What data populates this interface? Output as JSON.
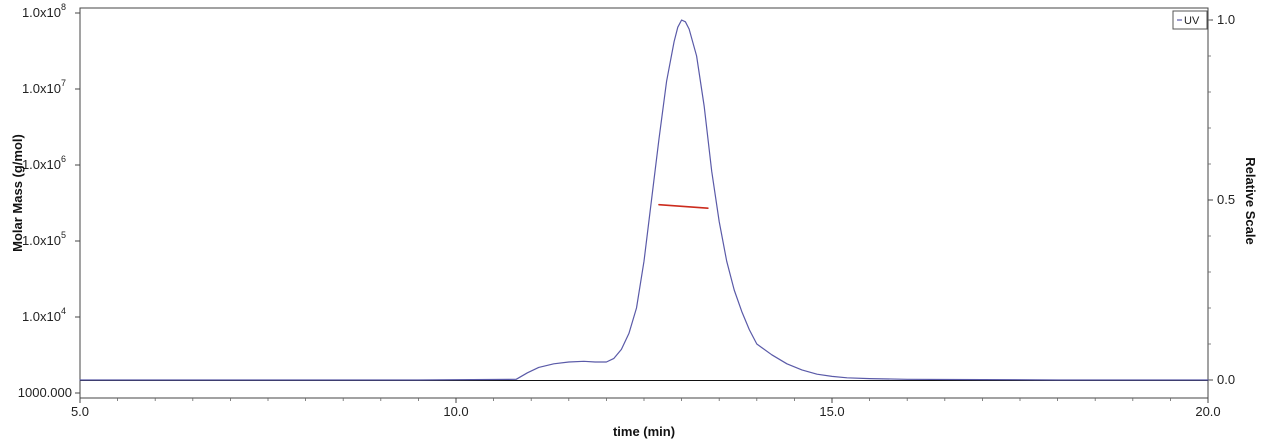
{
  "chart_data": {
    "type": "line",
    "xlabel": "time (min)",
    "ylabel_left": "Molar Mass (g/mol)",
    "ylabel_right": "Relative Scale",
    "xlim": [
      5.0,
      20.0
    ],
    "ylim_left": [
      1000,
      100000000
    ],
    "ylim_right": [
      -0.0,
      1.0
    ],
    "y_left_scale": "log",
    "x_ticks": [
      "5.0",
      "10.0",
      "15.0",
      "20.0"
    ],
    "x_tick_values": [
      5,
      10,
      15,
      20
    ],
    "y_left_ticks": [
      {
        "value": 1000,
        "mant": "1000.000",
        "exp": ""
      },
      {
        "value": 10000,
        "mant": "1.0x10",
        "exp": "4"
      },
      {
        "value": 100000,
        "mant": "1.0x10",
        "exp": "5"
      },
      {
        "value": 1000000,
        "mant": "1.0x10",
        "exp": "6"
      },
      {
        "value": 10000000,
        "mant": "1.0x10",
        "exp": "7"
      },
      {
        "value": 100000000,
        "mant": "1.0x10",
        "exp": "8"
      }
    ],
    "y_right_ticks": [
      {
        "value": 0.0,
        "label": "0.0"
      },
      {
        "value": 0.5,
        "label": "0.5"
      },
      {
        "value": 1.0,
        "label": "1.0"
      }
    ],
    "legend": {
      "entries": [
        "UV"
      ],
      "placement": "top-right"
    },
    "grid": false,
    "series": [
      {
        "name": "UV",
        "axis": "right",
        "color": "#5a5aa8",
        "x": [
          5.0,
          9.5,
          10.8,
          10.95,
          11.1,
          11.3,
          11.5,
          11.7,
          11.85,
          12.0,
          12.1,
          12.2,
          12.3,
          12.4,
          12.5,
          12.6,
          12.7,
          12.8,
          12.9,
          12.95,
          13.0,
          13.05,
          13.1,
          13.2,
          13.3,
          13.4,
          13.5,
          13.6,
          13.7,
          13.8,
          13.9,
          14.0,
          14.2,
          14.4,
          14.6,
          14.8,
          15.0,
          15.2,
          15.5,
          16.0,
          17.0,
          18.0,
          20.0
        ],
        "values": [
          0.0,
          0.0,
          0.002,
          0.02,
          0.035,
          0.045,
          0.05,
          0.052,
          0.05,
          0.05,
          0.06,
          0.085,
          0.13,
          0.2,
          0.33,
          0.5,
          0.67,
          0.83,
          0.94,
          0.98,
          1.0,
          0.995,
          0.975,
          0.9,
          0.76,
          0.58,
          0.44,
          0.33,
          0.25,
          0.19,
          0.14,
          0.1,
          0.07,
          0.045,
          0.028,
          0.016,
          0.01,
          0.006,
          0.004,
          0.002,
          0.001,
          0.0,
          0.0
        ]
      },
      {
        "name": "",
        "axis": "left",
        "color": "#cc2b1d",
        "x": [
          12.7,
          13.35
        ],
        "values": [
          300000,
          270000
        ]
      }
    ]
  }
}
